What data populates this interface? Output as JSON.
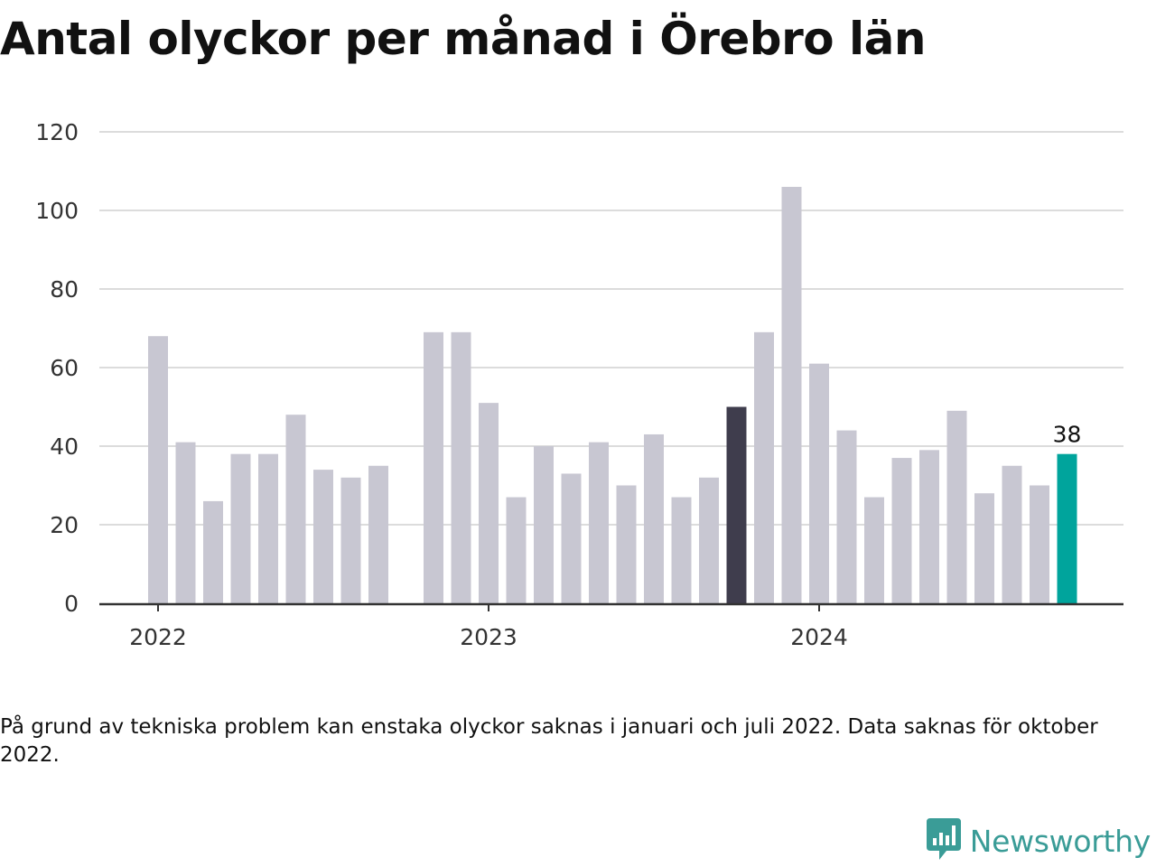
{
  "chart_data": {
    "type": "bar",
    "title": "Antal olyckor per månad i Örebro län",
    "xlabel": "",
    "ylabel": "",
    "ylim": [
      0,
      120
    ],
    "yticks": [
      "0",
      "20",
      "40",
      "60",
      "80",
      "100",
      "120"
    ],
    "x_tick_labels": [
      {
        "label": "2022",
        "index": 0
      },
      {
        "label": "2023",
        "index": 12
      },
      {
        "label": "2024",
        "index": 24
      }
    ],
    "categories": [
      "2022-01",
      "2022-02",
      "2022-03",
      "2022-04",
      "2022-05",
      "2022-06",
      "2022-07",
      "2022-08",
      "2022-09",
      "2022-10",
      "2022-11",
      "2022-12",
      "2023-01",
      "2023-02",
      "2023-03",
      "2023-04",
      "2023-05",
      "2023-06",
      "2023-07",
      "2023-08",
      "2023-09",
      "2023-10",
      "2023-11",
      "2023-12",
      "2024-01",
      "2024-02",
      "2024-03",
      "2024-04",
      "2024-05",
      "2024-06",
      "2024-07",
      "2024-08",
      "2024-09",
      "2024-10"
    ],
    "values": [
      68,
      41,
      26,
      38,
      38,
      48,
      34,
      32,
      35,
      null,
      69,
      69,
      51,
      27,
      40,
      33,
      41,
      30,
      43,
      27,
      32,
      50,
      69,
      106,
      61,
      44,
      27,
      37,
      39,
      49,
      28,
      35,
      30,
      38
    ],
    "grid": true,
    "colors": {
      "default": "#c8c7d2",
      "highlight_previous": "#3f3d4d",
      "highlight_latest": "#00a49c"
    },
    "highlights": {
      "previous_year_index": 21,
      "latest_index": 33
    },
    "value_label": {
      "index": 33,
      "text": "38"
    }
  },
  "footnote": "På grund av tekniska problem kan enstaka olyckor saknas i januari och juli 2022. Data saknas för oktober 2022.",
  "brand": {
    "name": "Newsworthy",
    "icon": "newsworthy-logo-icon",
    "color": "#3a9c97"
  }
}
